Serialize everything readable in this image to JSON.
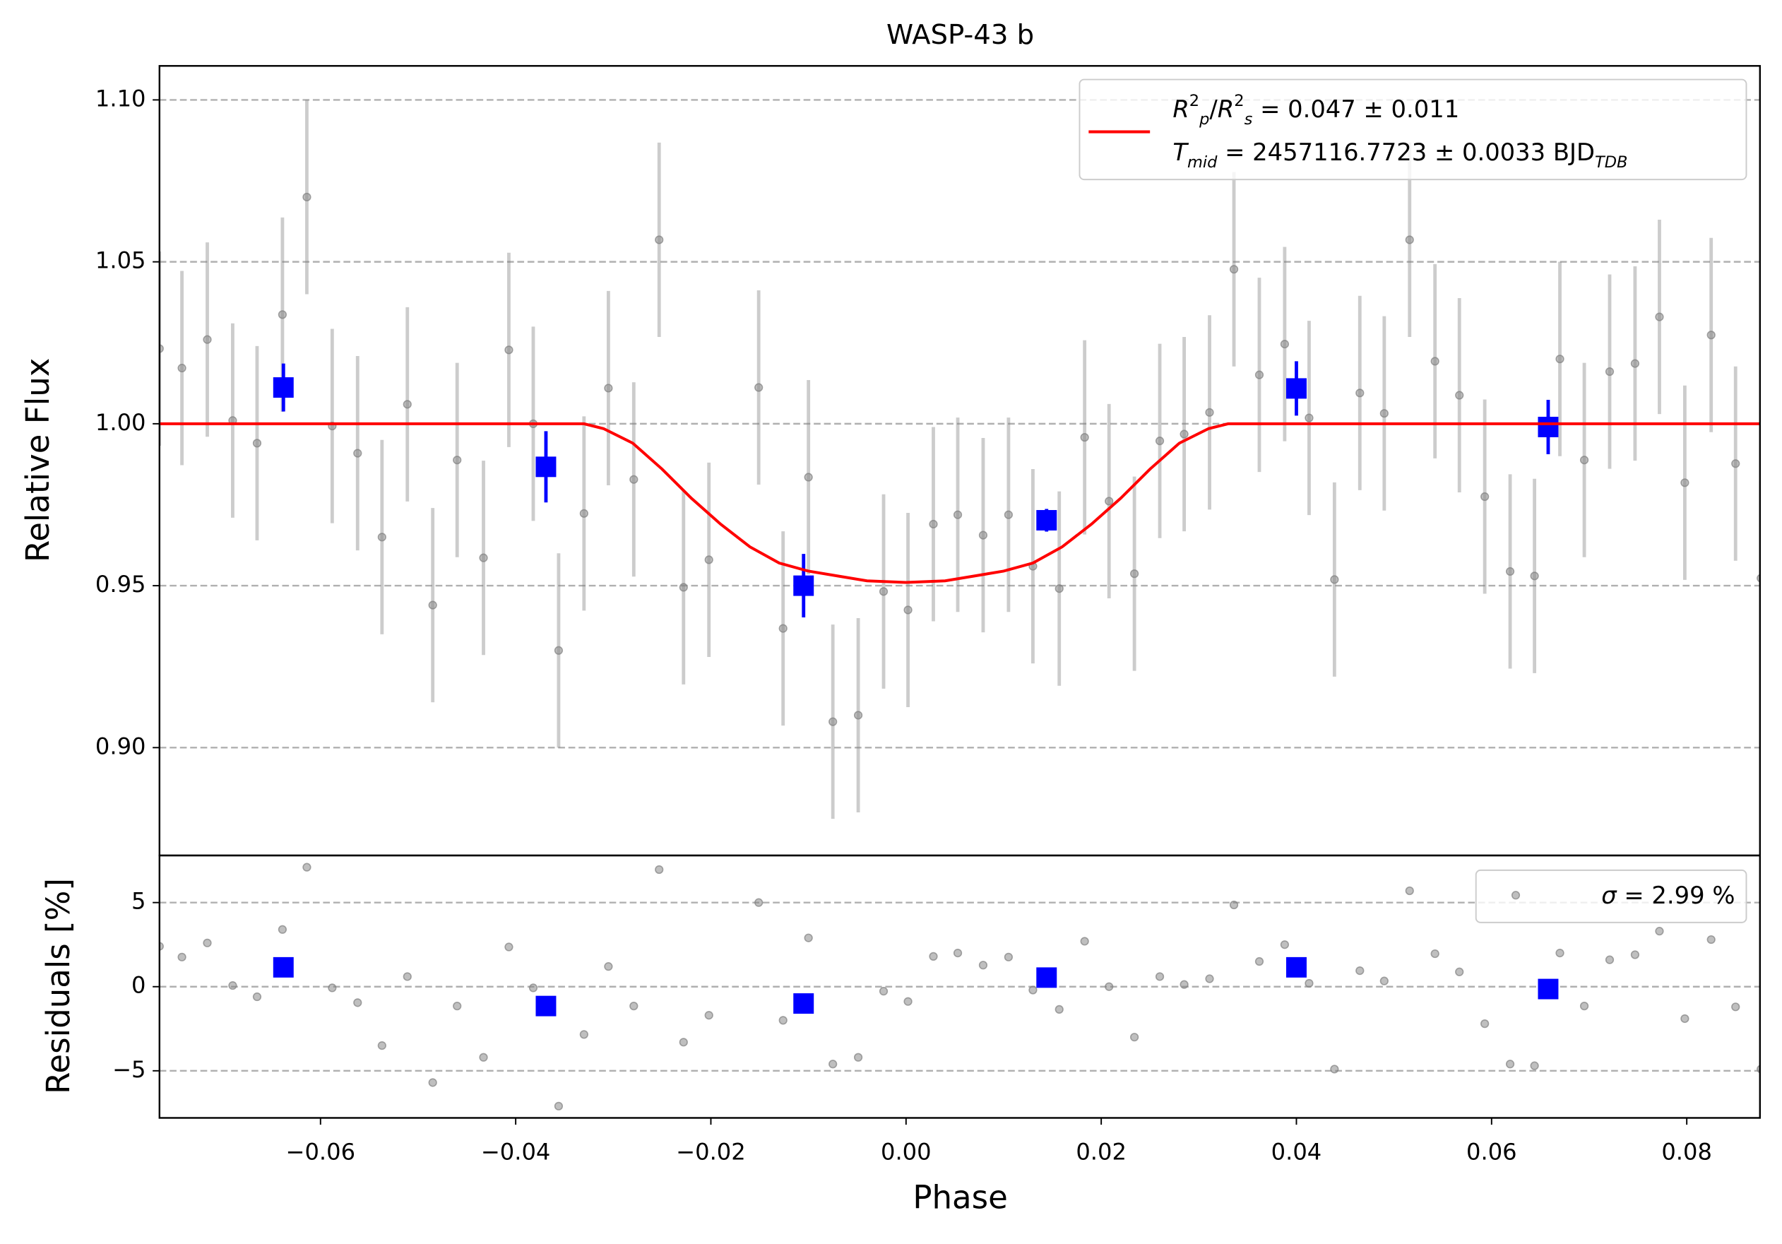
{
  "chart_data": [
    {
      "type": "errorbar",
      "title": "WASP-43 b",
      "ylabel": "Relative Flux",
      "xlim": [
        -0.0765,
        0.0875
      ],
      "ylim": [
        0.8667,
        1.1105
      ],
      "yticks": [
        {
          "value": 1.1,
          "label": "1.10"
        },
        1.05,
        {
          "value": 1.0,
          "label": "1.00"
        },
        0.95,
        {
          "value": 0.9,
          "label": "0.90"
        }
      ],
      "grid": true,
      "series": [
        {
          "kind": "points",
          "color": "#808080",
          "yerr": 0.03,
          "x": [
            -0.0765,
            -0.0742,
            -0.0716,
            -0.069,
            -0.0665,
            -0.0639,
            -0.0614,
            -0.0588,
            -0.0562,
            -0.0537,
            -0.0511,
            -0.0485,
            -0.046,
            -0.0433,
            -0.0407,
            -0.0382,
            -0.0356,
            -0.033,
            -0.0305,
            -0.0279,
            -0.0253,
            -0.0228,
            -0.0202,
            -0.0151,
            -0.0126,
            -0.01,
            -0.0075,
            -0.0049,
            -0.0023,
            0.0002,
            0.0028,
            0.0053,
            0.0079,
            0.0105,
            0.013,
            0.0157,
            0.0183,
            0.0208,
            0.0234,
            0.026,
            0.0285,
            0.0311,
            0.0336,
            0.0362,
            0.0388,
            0.0413,
            0.0439,
            0.0465,
            0.049,
            0.0516,
            0.0542,
            0.0567,
            0.0593,
            0.0619,
            0.0644,
            0.067,
            0.0695,
            0.0721,
            0.0747,
            0.0772,
            0.0798,
            0.0825,
            0.085,
            0.0876
          ],
          "values": [
            1.0232,
            1.0172,
            1.026,
            1.001,
            0.994,
            1.0337,
            1.07,
            0.9993,
            0.9909,
            0.965,
            1.006,
            0.944,
            0.9888,
            0.9586,
            1.0228,
            1.0,
            0.93,
            0.9723,
            1.011,
            0.9828,
            1.0568,
            0.9495,
            0.958,
            1.0112,
            0.9368,
            0.9835,
            0.908,
            0.91,
            0.9482,
            0.9425,
            0.969,
            0.9719,
            0.9656,
            0.9719,
            0.956,
            0.9491,
            0.9958,
            0.9761,
            0.9537,
            0.9947,
            0.9968,
            1.0035,
            1.0477,
            1.0151,
            1.0246,
            1.0018,
            0.9519,
            1.0095,
            1.0032,
            1.0568,
            1.0193,
            1.0088,
            0.9775,
            0.9544,
            0.953,
            1.02,
            0.9888,
            1.0161,
            1.0186,
            1.033,
            0.9818,
            1.0274,
            0.9877,
            0.9523
          ]
        },
        {
          "kind": "binned",
          "color": "#0000ff",
          "x": [
            -0.0638,
            -0.0369,
            -0.0105,
            0.0144,
            0.04,
            0.0658
          ],
          "values": [
            1.0112,
            0.9867,
            0.95,
            0.9702,
            1.0109,
            0.999
          ],
          "yerr": [
            0.0074,
            0.011,
            0.0098,
            0.0035,
            0.0084,
            0.0084
          ]
        },
        {
          "kind": "line",
          "color": "#ff0000",
          "label": [
            {
              "text": "R",
              "italic": true
            },
            {
              "text": "2",
              "shift": "super"
            },
            {
              "text": "p",
              "shift": "sub",
              "italic": true
            },
            {
              "text": "/"
            },
            {
              "text": "R",
              "italic": true
            },
            {
              "text": "2",
              "shift": "super"
            },
            {
              "text": "s",
              "shift": "sub",
              "italic": true
            },
            {
              "text": " = 0.047 ± 0.011"
            }
          ],
          "label2": [
            {
              "text": "T",
              "italic": true
            },
            {
              "text": "mid",
              "shift": "sub",
              "italic": true
            },
            {
              "text": " = 2457116.7723 ± 0.0033 BJD"
            },
            {
              "text": "TDB",
              "shift": "sub",
              "italic": true
            }
          ],
          "x": [
            -0.0765,
            -0.033,
            -0.031,
            -0.028,
            -0.025,
            -0.022,
            -0.019,
            -0.016,
            -0.013,
            -0.01,
            -0.007,
            -0.004,
            0,
            0.004,
            0.007,
            0.01,
            0.013,
            0.016,
            0.019,
            0.022,
            0.025,
            0.028,
            0.031,
            0.033,
            0.0875
          ],
          "values": [
            1.0,
            1.0,
            0.9985,
            0.994,
            0.986,
            0.977,
            0.969,
            0.962,
            0.957,
            0.9545,
            0.953,
            0.9515,
            0.951,
            0.9515,
            0.953,
            0.9545,
            0.957,
            0.962,
            0.969,
            0.977,
            0.986,
            0.994,
            0.9985,
            1.0,
            1.0
          ]
        }
      ]
    },
    {
      "type": "scatter",
      "ylabel": "Residuals [%]",
      "xlabel": "Phase",
      "xlim": [
        -0.0765,
        0.0875
      ],
      "ylim": [
        -7.8,
        7.8
      ],
      "xticks": [
        {
          "value": -0.06,
          "label": "−0.06"
        },
        {
          "value": -0.04,
          "label": "−0.04"
        },
        {
          "value": -0.02,
          "label": "−0.02"
        },
        {
          "value": 0,
          "label": "0.00"
        },
        0.02,
        0.04,
        0.06,
        0.08
      ],
      "yticks": [
        5,
        0,
        {
          "value": -5,
          "label": "−5"
        }
      ],
      "grid": true,
      "series": [
        {
          "kind": "points",
          "color": "#808080",
          "label": [
            {
              "text": "σ",
              "italic": true
            },
            {
              "text": " = 2.99 %"
            }
          ],
          "x": [
            -0.0765,
            -0.0742,
            -0.0716,
            -0.069,
            -0.0665,
            -0.0639,
            -0.0614,
            -0.0588,
            -0.0562,
            -0.0537,
            -0.0511,
            -0.0485,
            -0.046,
            -0.0433,
            -0.0407,
            -0.0382,
            -0.0356,
            -0.033,
            -0.0305,
            -0.0279,
            -0.0253,
            -0.0228,
            -0.0202,
            -0.0151,
            -0.0126,
            -0.01,
            -0.0075,
            -0.0049,
            -0.0023,
            0.0002,
            0.0028,
            0.0053,
            0.0079,
            0.0105,
            0.013,
            0.0157,
            0.0183,
            0.0208,
            0.0234,
            0.026,
            0.0285,
            0.0311,
            0.0336,
            0.0362,
            0.0388,
            0.0413,
            0.0439,
            0.0465,
            0.049,
            0.0516,
            0.0542,
            0.0567,
            0.0593,
            0.0619,
            0.0644,
            0.067,
            0.0695,
            0.0721,
            0.0747,
            0.0772,
            0.0798,
            0.0825,
            0.085,
            0.0876
          ],
          "values": [
            2.4,
            1.76,
            2.6,
            0.07,
            -0.6,
            3.4,
            7.1,
            -0.07,
            -0.95,
            -3.5,
            0.6,
            -5.7,
            -1.15,
            -4.2,
            2.36,
            -0.07,
            -7.1,
            -2.84,
            1.2,
            -1.15,
            6.96,
            -3.3,
            -1.7,
            5.0,
            -2.0,
            2.9,
            -4.6,
            -4.2,
            -0.27,
            -0.88,
            1.8,
            2.0,
            1.28,
            1.76,
            -0.2,
            -1.35,
            2.7,
            0.0,
            -3.0,
            0.6,
            0.13,
            0.47,
            4.86,
            1.5,
            2.5,
            0.2,
            -4.9,
            0.95,
            0.34,
            5.7,
            1.96,
            0.88,
            -2.2,
            -4.6,
            -4.7,
            2.0,
            -1.15,
            1.6,
            1.9,
            3.3,
            -1.9,
            2.8,
            -1.2,
            -4.9
          ]
        },
        {
          "kind": "binned",
          "color": "#0000ff",
          "x": [
            -0.0638,
            -0.0369,
            -0.0105,
            0.0144,
            0.04,
            0.0658
          ],
          "values": [
            1.15,
            -1.15,
            -1.0,
            0.54,
            1.15,
            -0.14
          ]
        }
      ]
    }
  ]
}
